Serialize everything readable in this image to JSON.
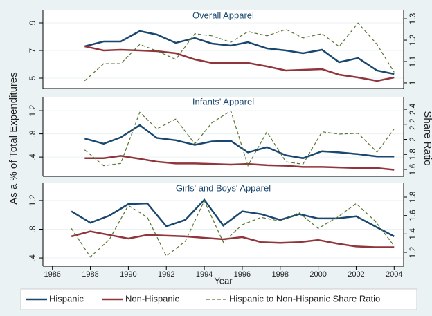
{
  "ylabel": "As a % of Total Expenditures",
  "y2label": "Share Ratio",
  "legend_position": "bottom",
  "chart_data": [
    {
      "type": "line",
      "title": "Overall Apparel",
      "x": [
        1987.7,
        1988.7,
        1989.6,
        1990.6,
        1991.5,
        1992.5,
        1993.5,
        1994.4,
        1995.4,
        1996.3,
        1997.3,
        1998.3,
        1999.2,
        2000.2,
        2001.1,
        2002.1,
        2003.1,
        2004.0
      ],
      "xlim": [
        1985.5,
        2004.5
      ],
      "ylim": [
        4.25,
        9.9
      ],
      "yticks": [
        5,
        7,
        9
      ],
      "y2lim": [
        0.974,
        1.339
      ],
      "y2ticks": [
        1,
        1.1,
        1.2,
        1.3
      ],
      "grid": true,
      "series": [
        {
          "name": "Hispanic",
          "color": "#1a476f",
          "values": [
            7.3,
            7.65,
            7.65,
            8.4,
            8.15,
            7.55,
            7.9,
            7.5,
            7.35,
            7.6,
            7.15,
            7.0,
            6.8,
            7.05,
            6.15,
            6.45,
            5.55,
            5.3
          ]
        },
        {
          "name": "Non-Hispanic",
          "color": "#90353b",
          "values": [
            7.3,
            7.0,
            7.05,
            7.0,
            6.95,
            6.8,
            6.35,
            6.1,
            6.1,
            6.1,
            5.85,
            5.55,
            5.6,
            5.65,
            5.25,
            5.05,
            4.8,
            5.05
          ]
        },
        {
          "name": "Hispanic to Non-Hispanic Share Ratio",
          "color": "#55752f",
          "axis": "y2",
          "dashed": true,
          "values": [
            1.01,
            1.09,
            1.09,
            1.18,
            1.15,
            1.11,
            1.23,
            1.22,
            1.19,
            1.24,
            1.22,
            1.25,
            1.21,
            1.23,
            1.17,
            1.28,
            1.18,
            1.05
          ]
        }
      ]
    },
    {
      "type": "line",
      "title": "Infants' Apparel",
      "x": [
        1987.7,
        1988.7,
        1989.6,
        1990.6,
        1991.5,
        1992.5,
        1993.5,
        1994.4,
        1995.4,
        1996.3,
        1997.3,
        1998.3,
        1999.2,
        2000.2,
        2001.1,
        2002.1,
        2003.1,
        2004.0
      ],
      "xlim": [
        1985.5,
        2004.5
      ],
      "ylim": [
        0.067,
        1.44
      ],
      "yticks": [
        {
          "value": 0.4,
          "label": ".4"
        },
        {
          "value": 0.8,
          "label": ".8"
        },
        1.2
      ],
      "y2lim": [
        1.508,
        2.566
      ],
      "y2ticks": [
        1.6,
        1.8,
        2,
        2.2,
        2.4
      ],
      "grid": true,
      "series": [
        {
          "name": "Hispanic",
          "color": "#1a476f",
          "values": [
            0.72,
            0.63,
            0.74,
            0.95,
            0.73,
            0.69,
            0.61,
            0.67,
            0.68,
            0.48,
            0.57,
            0.43,
            0.38,
            0.5,
            0.48,
            0.45,
            0.41,
            0.41
          ]
        },
        {
          "name": "Non-Hispanic",
          "color": "#90353b",
          "values": [
            0.38,
            0.38,
            0.42,
            0.37,
            0.32,
            0.29,
            0.29,
            0.28,
            0.27,
            0.28,
            0.26,
            0.25,
            0.23,
            0.23,
            0.22,
            0.21,
            0.21,
            0.18
          ]
        },
        {
          "name": "Hispanic to Non-Hispanic Share Ratio",
          "color": "#55752f",
          "axis": "y2",
          "dashed": true,
          "values": [
            1.86,
            1.65,
            1.68,
            2.36,
            2.14,
            2.27,
            1.94,
            2.22,
            2.38,
            1.65,
            2.1,
            1.7,
            1.67,
            2.1,
            2.07,
            2.08,
            1.83,
            2.14
          ]
        }
      ]
    },
    {
      "type": "line",
      "title": "Girls' and Boys' Apparel",
      "xlabel": "Year",
      "x": [
        1987,
        1988,
        1989,
        1990,
        1991,
        1992,
        1993,
        1994,
        1995,
        1996,
        1997,
        1998,
        1999,
        2000,
        2001,
        2002,
        2003,
        2004
      ],
      "xlim": [
        1985.5,
        2004.5
      ],
      "xticks": [
        1986,
        1988,
        1990,
        1992,
        1994,
        1996,
        1998,
        2000,
        2002,
        2004
      ],
      "ylim": [
        0.285,
        1.44
      ],
      "yticks": [
        {
          "value": 0.4,
          "label": ".4"
        },
        {
          "value": 0.8,
          "label": ".8"
        },
        1.2
      ],
      "y2lim": [
        1.05,
        1.95
      ],
      "y2ticks": [
        1.2,
        1.4,
        1.6,
        1.8
      ],
      "grid": true,
      "series": [
        {
          "name": "Hispanic",
          "color": "#1a476f",
          "values": [
            1.05,
            0.89,
            0.99,
            1.15,
            1.16,
            0.84,
            0.93,
            1.21,
            0.85,
            1.05,
            1.01,
            0.93,
            1.01,
            0.95,
            0.95,
            0.98,
            0.84,
            0.7
          ]
        },
        {
          "name": "Non-Hispanic",
          "color": "#90353b",
          "values": [
            0.7,
            0.77,
            0.72,
            0.67,
            0.72,
            0.71,
            0.7,
            0.68,
            0.66,
            0.69,
            0.62,
            0.61,
            0.62,
            0.65,
            0.6,
            0.56,
            0.55,
            0.55
          ]
        },
        {
          "name": "Hispanic to Non-Hispanic Share Ratio",
          "color": "#55752f",
          "axis": "y2",
          "dashed": true,
          "values": [
            1.46,
            1.15,
            1.34,
            1.71,
            1.58,
            1.16,
            1.32,
            1.76,
            1.31,
            1.5,
            1.58,
            1.54,
            1.63,
            1.46,
            1.58,
            1.73,
            1.54,
            1.27
          ]
        }
      ]
    }
  ]
}
